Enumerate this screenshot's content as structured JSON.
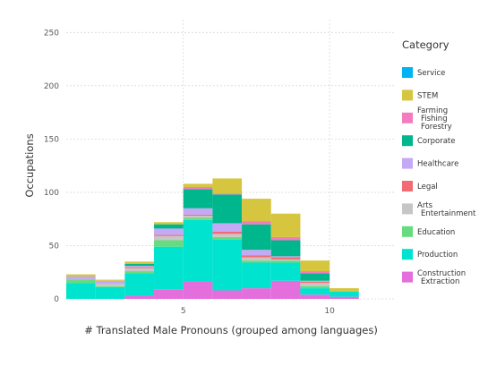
{
  "chart_data": {
    "type": "bar",
    "stacked": true,
    "xlabel": "# Translated Male Pronouns (grouped among languages)",
    "ylabel": "Occupations",
    "xlim": [
      1.0,
      12.2
    ],
    "ylim": [
      0,
      262
    ],
    "x_ticks": [
      5,
      10
    ],
    "y_ticks": [
      0,
      50,
      100,
      150,
      200,
      250
    ],
    "grid": true,
    "legend": {
      "title": "Category",
      "position": "right"
    },
    "bin_width": 1,
    "bins": [
      1.5,
      2.5,
      3.5,
      4.5,
      5.5,
      6.5,
      7.5,
      8.5,
      9.5,
      10.5,
      11.5
    ],
    "series": [
      {
        "name": "Construction\nExtraction",
        "color": "#E46EDB",
        "values": [
          0,
          0,
          3,
          9,
          16,
          8,
          10,
          17,
          4,
          2,
          0
        ]
      },
      {
        "name": "Production",
        "color": "#00E3CF",
        "values": [
          15,
          11,
          21,
          40,
          58,
          48,
          24,
          17,
          6,
          5,
          0
        ]
      },
      {
        "name": "Service",
        "color": "#00B3F2",
        "values": [
          0,
          0,
          0,
          0,
          0,
          0,
          0,
          0,
          0,
          0,
          0
        ]
      },
      {
        "name": "Education",
        "color": "#66DC7E",
        "values": [
          3,
          1,
          2,
          6,
          2,
          2,
          2,
          2,
          2,
          0,
          0
        ]
      },
      {
        "name": "Arts\nEntertainment",
        "color": "#C6C6C6",
        "values": [
          0,
          2,
          3,
          4,
          2,
          3,
          3,
          1,
          3,
          0,
          0
        ]
      },
      {
        "name": "Legal",
        "color": "#F36B72",
        "values": [
          0,
          0,
          1,
          1,
          1,
          2,
          2,
          2,
          1,
          0,
          0
        ]
      },
      {
        "name": "Healthcare",
        "color": "#C4A9F7",
        "values": [
          3,
          3,
          1,
          6,
          6,
          8,
          5,
          1,
          1,
          0,
          0
        ]
      },
      {
        "name": "Corporate",
        "color": "#00B78D",
        "values": [
          0,
          0,
          2,
          4,
          18,
          27,
          24,
          15,
          7,
          0,
          0
        ]
      },
      {
        "name": "Farming\nFishing\nForestry",
        "color": "#F47BC0",
        "values": [
          0,
          0,
          0,
          0,
          2,
          1,
          3,
          3,
          2,
          0,
          0
        ]
      },
      {
        "name": "STEM",
        "color": "#D5C53F",
        "values": [
          2,
          1,
          2,
          2,
          3,
          14,
          21,
          22,
          10,
          3,
          0
        ]
      }
    ],
    "legend_order": [
      "Service",
      "STEM",
      "Farming\nFishing\nForestry",
      "Corporate",
      "Healthcare",
      "Legal",
      "Arts\nEntertainment",
      "Education",
      "Production",
      "Construction\nExtraction"
    ]
  }
}
